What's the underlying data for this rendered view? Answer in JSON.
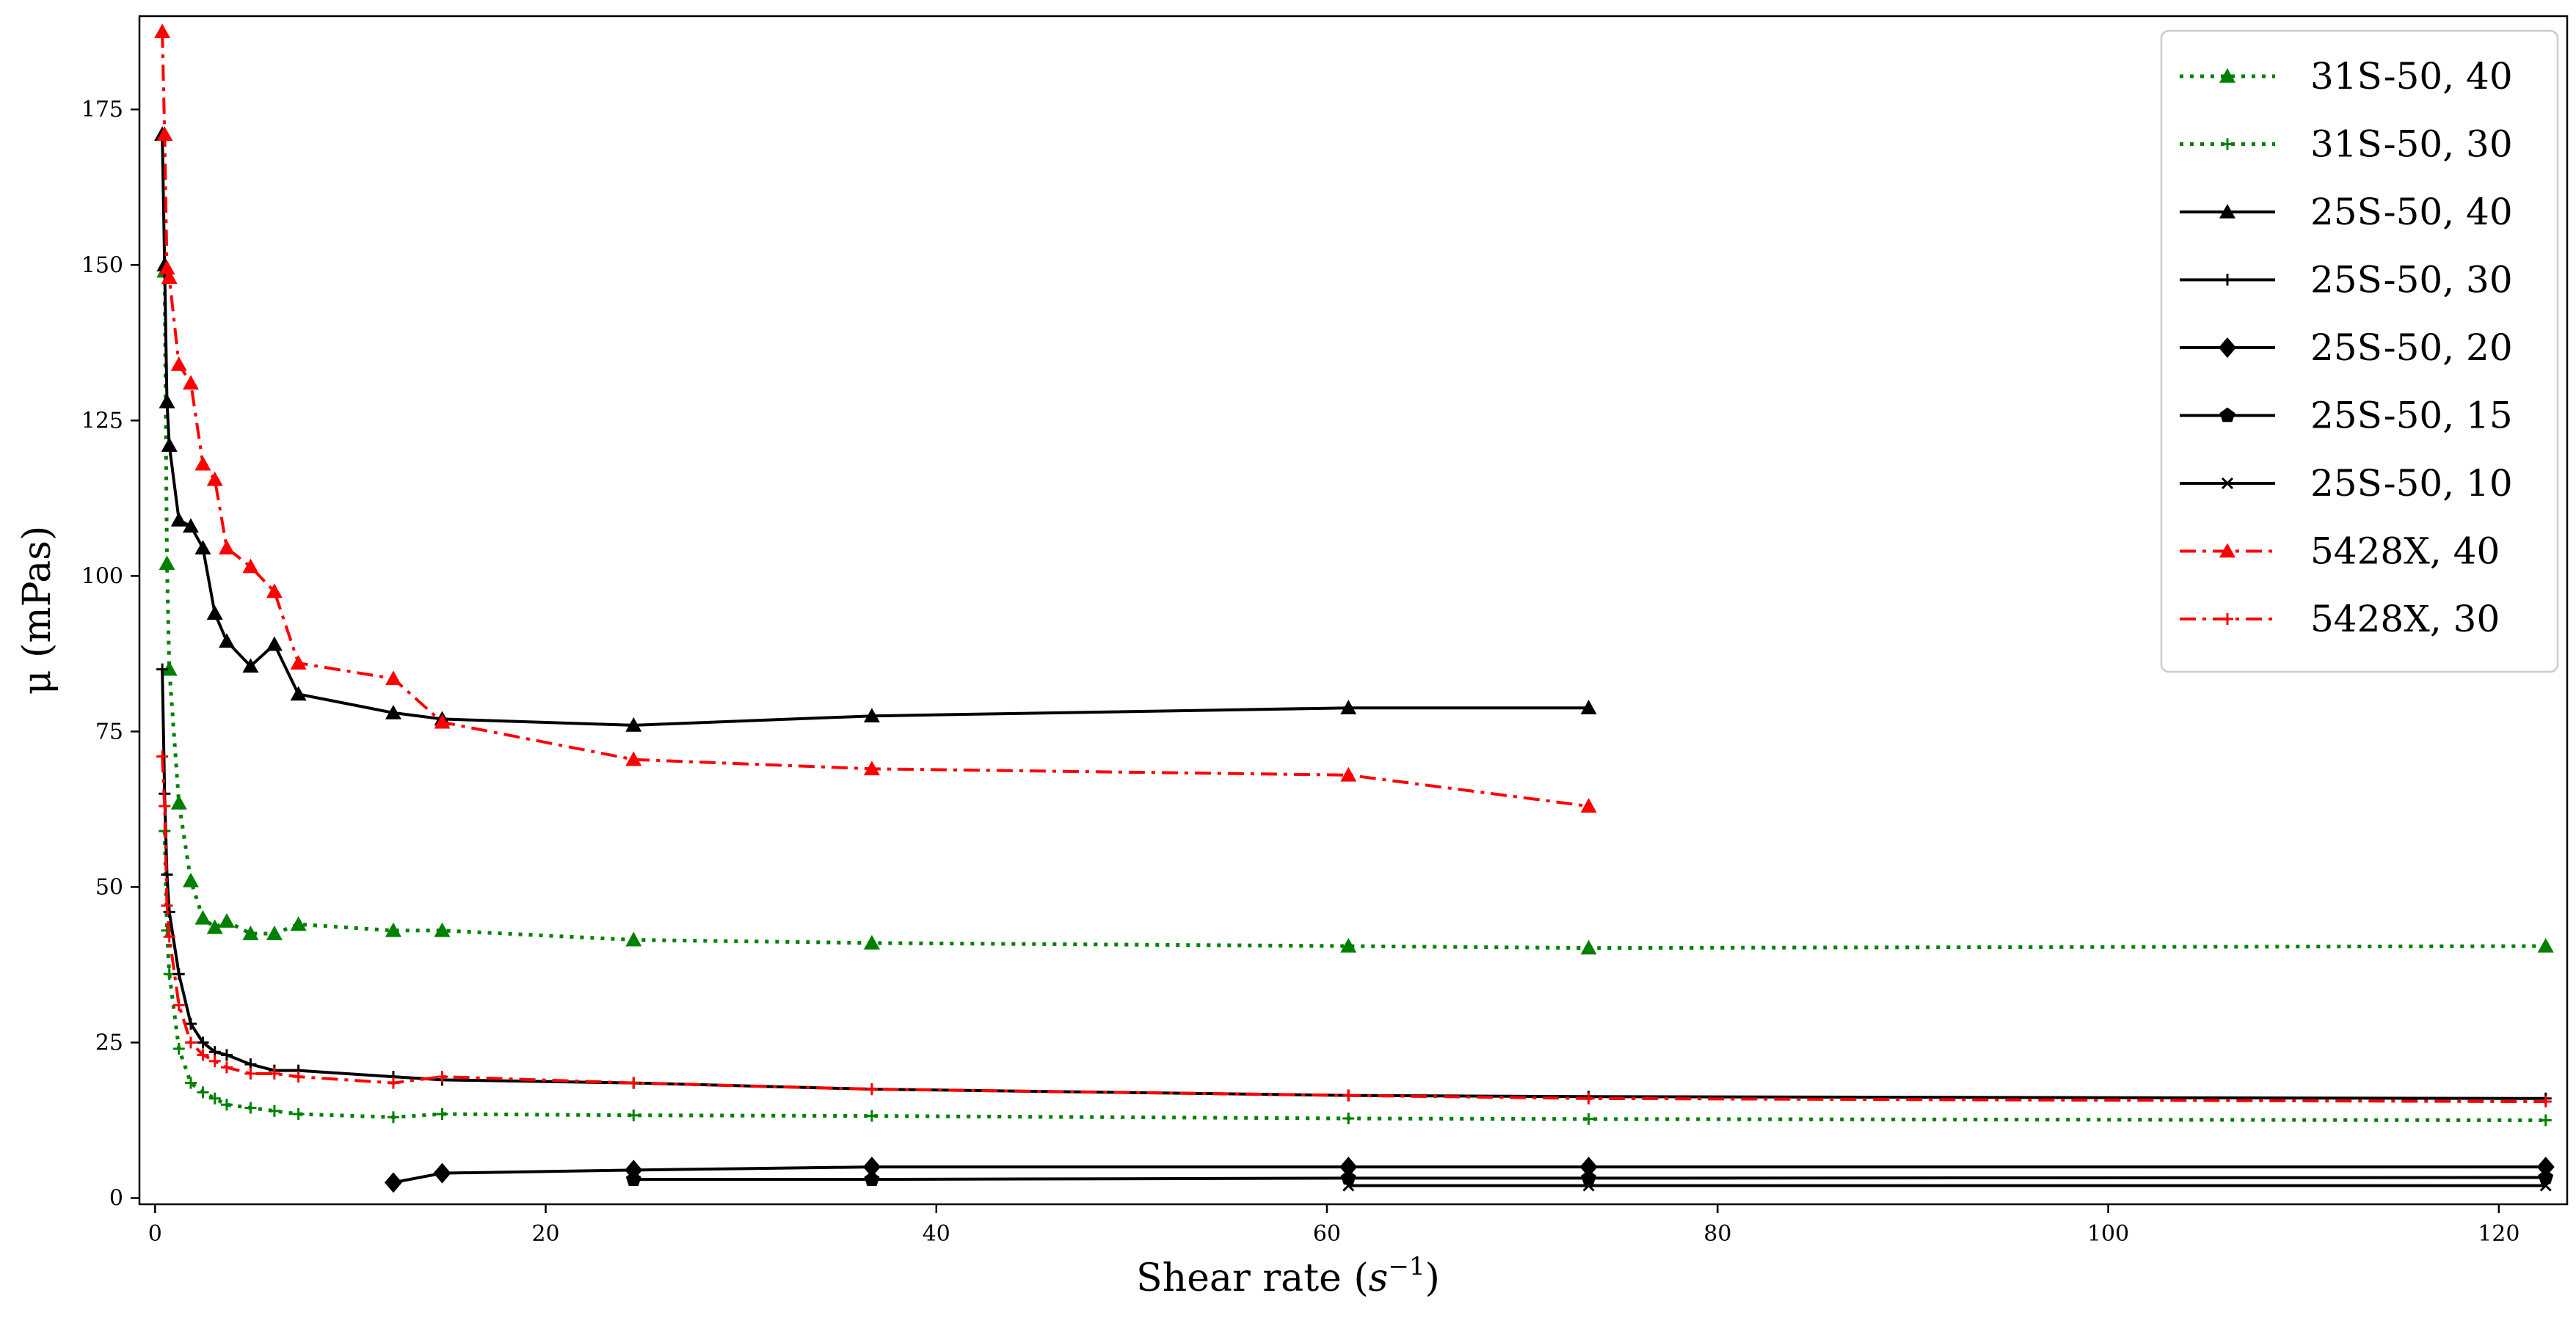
{
  "chart_data": {
    "type": "line",
    "xlabel": "Shear rate",
    "xlabel_unit_base": "s",
    "xlabel_unit_exp": "−1",
    "ylabel": "μ (mPas)",
    "xlim": [
      -0.8,
      123.5
    ],
    "ylim": [
      -1,
      190
    ],
    "xticks": [
      0,
      20,
      40,
      60,
      80,
      100,
      120
    ],
    "yticks": [
      0,
      25,
      50,
      75,
      100,
      125,
      150,
      175
    ],
    "grid": false,
    "legend_position": "top-right",
    "series": [
      {
        "name": "31S-50, 40",
        "color": "#008000",
        "dash": "dotted",
        "marker": "triangle",
        "x": [
          0.49,
          0.61,
          0.73,
          1.22,
          1.83,
          2.45,
          3.06,
          3.67,
          4.89,
          6.11,
          7.34,
          12.2,
          14.7,
          24.5,
          36.7,
          61.1,
          73.4,
          122.4
        ],
        "y": [
          149,
          102,
          85,
          63.5,
          51,
          45,
          43.5,
          44.5,
          42.5,
          42.5,
          44,
          43,
          43,
          41.5,
          41,
          40.5,
          40.2,
          40.5
        ]
      },
      {
        "name": "31S-50, 30",
        "color": "#008000",
        "dash": "dotted",
        "marker": "plus",
        "x": [
          0.49,
          0.61,
          0.73,
          1.22,
          1.83,
          2.45,
          3.06,
          3.67,
          4.89,
          6.11,
          7.34,
          12.2,
          14.7,
          24.5,
          36.7,
          61.1,
          73.4,
          122.4
        ],
        "y": [
          59,
          43,
          36,
          24,
          18.5,
          17,
          16,
          15,
          14.5,
          14,
          13.5,
          13,
          13.5,
          13.3,
          13.2,
          12.8,
          12.7,
          12.5
        ]
      },
      {
        "name": "25S-50, 40",
        "color": "#000000",
        "dash": "solid",
        "marker": "triangle",
        "x": [
          0.37,
          0.49,
          0.61,
          0.73,
          1.22,
          1.83,
          2.45,
          3.06,
          3.67,
          4.89,
          6.11,
          7.34,
          12.2,
          14.7,
          24.5,
          36.7,
          61.1,
          73.4
        ],
        "y": [
          171,
          150,
          128,
          121,
          109,
          108,
          104.5,
          94,
          89.5,
          85.5,
          89,
          81,
          78,
          77,
          76,
          77.5,
          78.8,
          78.8
        ]
      },
      {
        "name": "25S-50, 30",
        "color": "#000000",
        "dash": "solid",
        "marker": "plus",
        "x": [
          0.37,
          0.49,
          0.61,
          0.73,
          1.22,
          1.83,
          2.45,
          3.06,
          3.67,
          4.89,
          6.11,
          7.34,
          12.2,
          14.7,
          24.5,
          36.7,
          61.1,
          73.4,
          122.4
        ],
        "y": [
          85,
          65,
          52,
          46,
          36,
          28,
          25,
          23.5,
          23,
          21.5,
          20.5,
          20.5,
          19.5,
          19,
          18.5,
          17.5,
          16.5,
          16.3,
          16
        ]
      },
      {
        "name": "25S-50, 20",
        "color": "#000000",
        "dash": "solid",
        "marker": "diamond",
        "x": [
          12.2,
          14.7,
          24.5,
          36.7,
          61.1,
          73.4,
          122.4
        ],
        "y": [
          2.5,
          4,
          4.5,
          5,
          5,
          5,
          5
        ]
      },
      {
        "name": "25S-50, 15",
        "color": "#000000",
        "dash": "solid",
        "marker": "pentagon",
        "x": [
          24.5,
          36.7,
          61.1,
          73.4,
          122.4
        ],
        "y": [
          3,
          3,
          3.2,
          3.2,
          3.3
        ]
      },
      {
        "name": "25S-50, 10",
        "color": "#000000",
        "dash": "solid",
        "marker": "x",
        "x": [
          61.1,
          73.4,
          122.4
        ],
        "y": [
          2,
          2,
          2
        ]
      },
      {
        "name": "5428X, 40",
        "color": "#ff0000",
        "dash": "dashdot",
        "marker": "triangle",
        "x": [
          0.37,
          0.49,
          0.61,
          0.73,
          1.22,
          1.83,
          2.45,
          3.06,
          3.67,
          4.89,
          6.11,
          7.34,
          12.2,
          14.7,
          24.5,
          36.7,
          61.1,
          73.4
        ],
        "y": [
          187.5,
          171,
          149.5,
          148,
          134,
          131,
          118,
          115.5,
          104.5,
          101.5,
          97.5,
          86,
          83.5,
          76.5,
          70.5,
          69,
          68,
          63
        ]
      },
      {
        "name": "5428X, 30",
        "color": "#ff0000",
        "dash": "dashdot",
        "marker": "plus",
        "x": [
          0.37,
          0.49,
          0.61,
          0.73,
          1.22,
          1.83,
          2.45,
          3.06,
          3.67,
          4.89,
          6.11,
          7.34,
          12.2,
          14.7,
          24.5,
          36.7,
          61.1,
          73.4,
          122.4
        ],
        "y": [
          71,
          63,
          47,
          42,
          31,
          25,
          23,
          22,
          21,
          20,
          20,
          19.5,
          18.5,
          19.5,
          18.5,
          17.5,
          16.5,
          16,
          15.5
        ]
      }
    ]
  }
}
